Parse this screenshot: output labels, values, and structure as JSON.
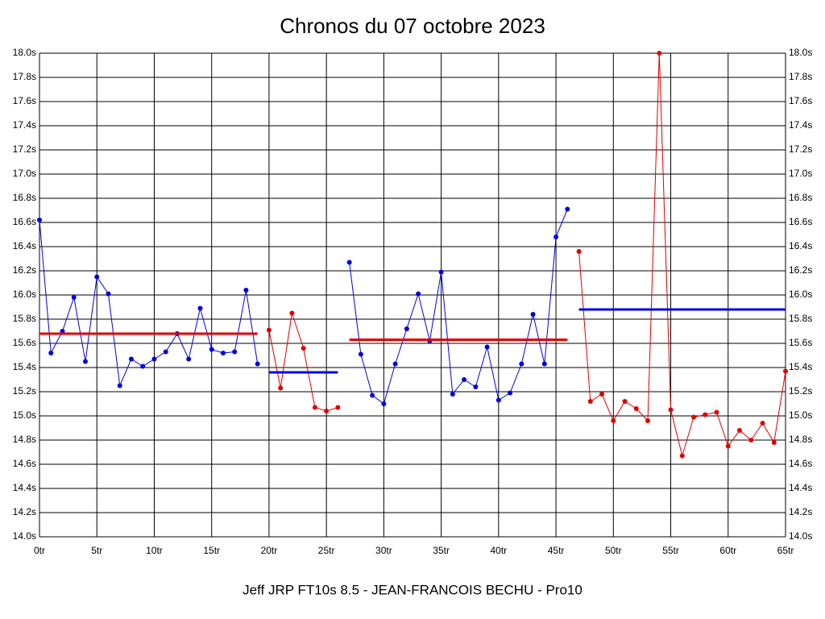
{
  "chart_data": {
    "type": "line",
    "title": "Chronos du 07 octobre 2023",
    "subtitle": "Jeff JRP FT10s 8.5 - JEAN-FRANCOIS BECHU - Pro10",
    "xlim": [
      0,
      65
    ],
    "xticks": [
      {
        "value": 0,
        "label": "0tr"
      },
      {
        "value": 5,
        "label": "5tr"
      },
      {
        "value": 10,
        "label": "10tr"
      },
      {
        "value": 15,
        "label": "15tr"
      },
      {
        "value": 20,
        "label": "20tr"
      },
      {
        "value": 25,
        "label": "25tr"
      },
      {
        "value": 30,
        "label": "30tr"
      },
      {
        "value": 35,
        "label": "35tr"
      },
      {
        "value": 40,
        "label": "40tr"
      },
      {
        "value": 45,
        "label": "45tr"
      },
      {
        "value": 50,
        "label": "50tr"
      },
      {
        "value": 55,
        "label": "55tr"
      },
      {
        "value": 60,
        "label": "60tr"
      },
      {
        "value": 65,
        "label": "65tr"
      }
    ],
    "ylim": [
      14.0,
      18.0
    ],
    "yticks": [
      {
        "value": 14.0,
        "label": "14.0s"
      },
      {
        "value": 14.2,
        "label": "14.2s"
      },
      {
        "value": 14.4,
        "label": "14.4s"
      },
      {
        "value": 14.6,
        "label": "14.6s"
      },
      {
        "value": 14.8,
        "label": "14.8s"
      },
      {
        "value": 15.0,
        "label": "15.0s"
      },
      {
        "value": 15.2,
        "label": "15.2s"
      },
      {
        "value": 15.4,
        "label": "15.4s"
      },
      {
        "value": 15.6,
        "label": "15.6s"
      },
      {
        "value": 15.8,
        "label": "15.8s"
      },
      {
        "value": 16.0,
        "label": "16.0s"
      },
      {
        "value": 16.2,
        "label": "16.2s"
      },
      {
        "value": 16.4,
        "label": "16.4s"
      },
      {
        "value": 16.6,
        "label": "16.6s"
      },
      {
        "value": 16.8,
        "label": "16.8s"
      },
      {
        "value": 17.0,
        "label": "17.0s"
      },
      {
        "value": 17.2,
        "label": "17.2s"
      },
      {
        "value": 17.4,
        "label": "17.4s"
      },
      {
        "value": 17.6,
        "label": "17.6s"
      },
      {
        "value": 17.8,
        "label": "17.8s"
      },
      {
        "value": 18.0,
        "label": "18.0s"
      }
    ],
    "grid": true,
    "series": [
      {
        "color": "#0000e0",
        "mean": 15.68,
        "mean_color": "#e00000",
        "x": [
          0,
          1,
          2,
          3,
          4,
          5,
          6,
          7,
          8,
          9,
          10,
          11,
          12,
          13,
          14,
          15,
          16,
          17,
          18,
          19
        ],
        "values": [
          16.62,
          15.52,
          15.7,
          15.98,
          15.45,
          16.15,
          16.01,
          15.25,
          15.47,
          15.41,
          15.47,
          15.53,
          15.68,
          15.47,
          15.89,
          15.55,
          15.52,
          15.53,
          16.04,
          15.43
        ]
      },
      {
        "color": "#e00000",
        "mean": 15.36,
        "mean_color": "#0000e0",
        "x": [
          20,
          21,
          22,
          23,
          24,
          25,
          26
        ],
        "values": [
          15.71,
          15.23,
          15.85,
          15.56,
          15.07,
          15.04,
          15.07
        ]
      },
      {
        "color": "#0000e0",
        "mean": 15.63,
        "mean_color": "#e00000",
        "x": [
          27,
          28,
          29,
          30,
          31,
          32,
          33,
          34,
          35,
          36,
          37,
          38,
          39,
          40,
          41,
          42,
          43,
          44,
          45,
          46
        ],
        "values": [
          16.27,
          15.51,
          15.17,
          15.1,
          15.43,
          15.72,
          16.01,
          15.62,
          16.19,
          15.18,
          15.3,
          15.24,
          15.57,
          15.13,
          15.19,
          15.43,
          15.84,
          15.43,
          16.48,
          16.71
        ]
      },
      {
        "color": "#e00000",
        "mean": 15.88,
        "mean_color": "#0000e0",
        "x": [
          47,
          48,
          49,
          50,
          51,
          52,
          53,
          54,
          55,
          56,
          57,
          58,
          59,
          60,
          61,
          62,
          63,
          64,
          65
        ],
        "values": [
          16.36,
          15.12,
          15.18,
          14.96,
          15.12,
          15.06,
          14.96,
          18.0,
          15.05,
          14.67,
          14.99,
          15.01,
          15.03,
          14.75,
          14.88,
          14.8,
          14.94,
          14.78,
          15.37
        ]
      }
    ]
  }
}
